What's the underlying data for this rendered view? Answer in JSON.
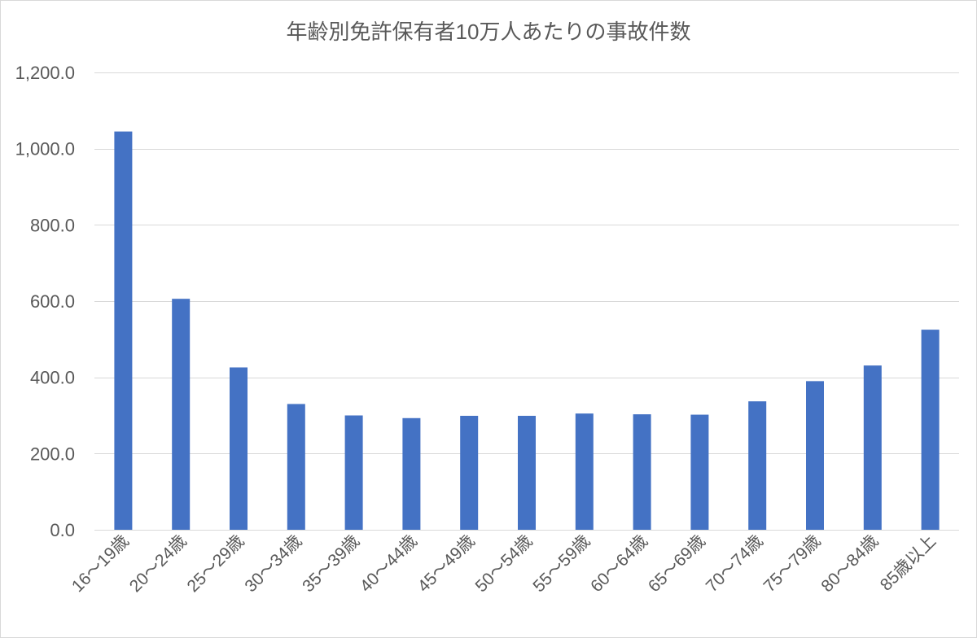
{
  "chart_data": {
    "type": "bar",
    "title": "年齢別免許保有者10万人あたりの事故件数",
    "xlabel": "",
    "ylabel": "",
    "categories": [
      "16～19歳",
      "20～24歳",
      "25～29歳",
      "30～34歳",
      "35～39歳",
      "40～44歳",
      "45～49歳",
      "50～54歳",
      "55～59歳",
      "60～64歳",
      "65～69歳",
      "70～74歳",
      "75～79歳",
      "80～84歳",
      "85歳以上"
    ],
    "values": [
      1045,
      606,
      426,
      330,
      300,
      293,
      299,
      299,
      305,
      303,
      302,
      337,
      390,
      431,
      525
    ],
    "ylim": [
      0,
      1200
    ],
    "y_ticks": [
      0,
      200,
      400,
      600,
      800,
      1000,
      1200
    ],
    "y_tick_labels": [
      "0.0",
      "200.0",
      "400.0",
      "600.0",
      "800.0",
      "1,000.0",
      "1,200.0"
    ],
    "grid": true,
    "legend": "none",
    "colors": {
      "bar": "#4472C4",
      "grid": "#D9D9D9",
      "text": "#595959",
      "border": "#D9D9D9"
    }
  }
}
